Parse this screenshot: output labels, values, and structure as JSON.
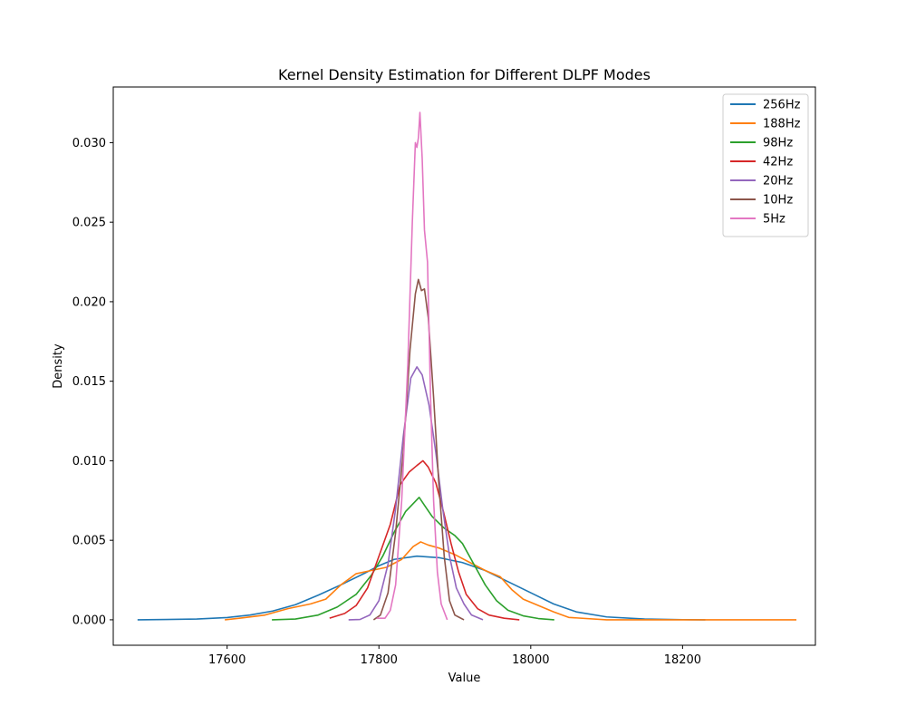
{
  "chart_data": {
    "type": "line",
    "title": "Kernel Density Estimation for Different DLPF Modes",
    "xlabel": "Value",
    "ylabel": "Density",
    "xlim": [
      17450,
      18375
    ],
    "ylim": [
      -0.0016,
      0.0335
    ],
    "xticks": [
      17600,
      17800,
      18000,
      18200
    ],
    "yticks": [
      0.0,
      0.005,
      0.01,
      0.015,
      0.02,
      0.025,
      0.03
    ],
    "ytick_labels": [
      "0.000",
      "0.005",
      "0.010",
      "0.015",
      "0.020",
      "0.025",
      "0.030"
    ],
    "grid": false,
    "legend_position": "top-right",
    "series": [
      {
        "name": "256Hz",
        "color": "#1f77b4",
        "points": [
          [
            17482,
            0.0
          ],
          [
            17520,
            2e-05
          ],
          [
            17560,
            5e-05
          ],
          [
            17600,
            0.00014
          ],
          [
            17630,
            0.0003
          ],
          [
            17660,
            0.00055
          ],
          [
            17690,
            0.00095
          ],
          [
            17720,
            0.00155
          ],
          [
            17750,
            0.0022
          ],
          [
            17780,
            0.0029
          ],
          [
            17800,
            0.0034
          ],
          [
            17820,
            0.0038
          ],
          [
            17850,
            0.004
          ],
          [
            17880,
            0.0039
          ],
          [
            17910,
            0.0036
          ],
          [
            17940,
            0.0031
          ],
          [
            17970,
            0.0024
          ],
          [
            18000,
            0.0017
          ],
          [
            18030,
            0.001
          ],
          [
            18060,
            0.0005
          ],
          [
            18100,
            0.00018
          ],
          [
            18150,
            5e-05
          ],
          [
            18200,
            1e-05
          ],
          [
            18230,
            0.0
          ]
        ]
      },
      {
        "name": "188Hz",
        "color": "#ff7f0e",
        "points": [
          [
            17597,
            0.0
          ],
          [
            17620,
            0.00012
          ],
          [
            17650,
            0.0003
          ],
          [
            17680,
            0.0007
          ],
          [
            17710,
            0.001
          ],
          [
            17730,
            0.0013
          ],
          [
            17750,
            0.0022
          ],
          [
            17770,
            0.0029
          ],
          [
            17790,
            0.0031
          ],
          [
            17810,
            0.0033
          ],
          [
            17830,
            0.0038
          ],
          [
            17845,
            0.0046
          ],
          [
            17855,
            0.0049
          ],
          [
            17865,
            0.0047
          ],
          [
            17880,
            0.0045
          ],
          [
            17900,
            0.0041
          ],
          [
            17920,
            0.0036
          ],
          [
            17940,
            0.0031
          ],
          [
            17960,
            0.0027
          ],
          [
            17975,
            0.0019
          ],
          [
            17990,
            0.0013
          ],
          [
            18010,
            0.0009
          ],
          [
            18030,
            0.0005
          ],
          [
            18050,
            0.00015
          ],
          [
            18100,
            0.0
          ],
          [
            18200,
            0.0
          ],
          [
            18350,
            0.0
          ]
        ]
      },
      {
        "name": "98Hz",
        "color": "#2ca02c",
        "points": [
          [
            17659,
            0.0
          ],
          [
            17690,
            5e-05
          ],
          [
            17720,
            0.0003
          ],
          [
            17745,
            0.0008
          ],
          [
            17770,
            0.0016
          ],
          [
            17790,
            0.0028
          ],
          [
            17805,
            0.004
          ],
          [
            17820,
            0.0055
          ],
          [
            17835,
            0.0068
          ],
          [
            17845,
            0.0073
          ],
          [
            17853,
            0.0077
          ],
          [
            17860,
            0.0072
          ],
          [
            17870,
            0.0065
          ],
          [
            17885,
            0.0058
          ],
          [
            17900,
            0.0053
          ],
          [
            17910,
            0.0048
          ],
          [
            17925,
            0.0035
          ],
          [
            17940,
            0.0022
          ],
          [
            17955,
            0.0012
          ],
          [
            17970,
            0.0006
          ],
          [
            17990,
            0.00025
          ],
          [
            18010,
            8e-05
          ],
          [
            18031,
            0.0
          ]
        ]
      },
      {
        "name": "42Hz",
        "color": "#d62728",
        "points": [
          [
            17735,
            0.0001
          ],
          [
            17755,
            0.0004
          ],
          [
            17770,
            0.0009
          ],
          [
            17785,
            0.002
          ],
          [
            17800,
            0.004
          ],
          [
            17815,
            0.006
          ],
          [
            17828,
            0.0085
          ],
          [
            17840,
            0.0093
          ],
          [
            17850,
            0.0097
          ],
          [
            17858,
            0.01
          ],
          [
            17865,
            0.0096
          ],
          [
            17875,
            0.0086
          ],
          [
            17885,
            0.0068
          ],
          [
            17895,
            0.0048
          ],
          [
            17905,
            0.003
          ],
          [
            17915,
            0.0016
          ],
          [
            17930,
            0.0007
          ],
          [
            17945,
            0.0003
          ],
          [
            17965,
            0.0001
          ],
          [
            17985,
            0.0
          ]
        ]
      },
      {
        "name": "20Hz",
        "color": "#9467bd",
        "points": [
          [
            17760,
            0.0
          ],
          [
            17775,
            2e-05
          ],
          [
            17788,
            0.0003
          ],
          [
            17800,
            0.0012
          ],
          [
            17812,
            0.0035
          ],
          [
            17822,
            0.007
          ],
          [
            17832,
            0.0115
          ],
          [
            17842,
            0.0152
          ],
          [
            17850,
            0.0159
          ],
          [
            17857,
            0.0154
          ],
          [
            17866,
            0.0135
          ],
          [
            17875,
            0.0105
          ],
          [
            17884,
            0.007
          ],
          [
            17893,
            0.004
          ],
          [
            17902,
            0.002
          ],
          [
            17912,
            0.001
          ],
          [
            17922,
            0.0003
          ],
          [
            17937,
            0.0
          ]
        ]
      },
      {
        "name": "10Hz",
        "color": "#8c564b",
        "points": [
          [
            17793,
            0.0
          ],
          [
            17802,
            0.0003
          ],
          [
            17812,
            0.0017
          ],
          [
            17822,
            0.0055
          ],
          [
            17832,
            0.0105
          ],
          [
            17841,
            0.017
          ],
          [
            17848,
            0.0205
          ],
          [
            17852,
            0.0214
          ],
          [
            17856,
            0.0207
          ],
          [
            17860,
            0.0208
          ],
          [
            17865,
            0.019
          ],
          [
            17872,
            0.014
          ],
          [
            17879,
            0.0085
          ],
          [
            17886,
            0.004
          ],
          [
            17893,
            0.0012
          ],
          [
            17900,
            0.0003
          ],
          [
            17912,
            0.0
          ]
        ]
      },
      {
        "name": "5Hz",
        "color": "#e377c2",
        "points": [
          [
            17797,
            0.0001
          ],
          [
            17808,
            0.0001
          ],
          [
            17815,
            0.0006
          ],
          [
            17822,
            0.0022
          ],
          [
            17830,
            0.0075
          ],
          [
            17838,
            0.016
          ],
          [
            17844,
            0.025
          ],
          [
            17848,
            0.03
          ],
          [
            17850,
            0.0297
          ],
          [
            17852,
            0.0303
          ],
          [
            17854,
            0.0319
          ],
          [
            17857,
            0.029
          ],
          [
            17860,
            0.0245
          ],
          [
            17864,
            0.0225
          ],
          [
            17868,
            0.014
          ],
          [
            17872,
            0.0075
          ],
          [
            17877,
            0.003
          ],
          [
            17882,
            0.001
          ],
          [
            17890,
            0.0
          ]
        ]
      }
    ]
  }
}
